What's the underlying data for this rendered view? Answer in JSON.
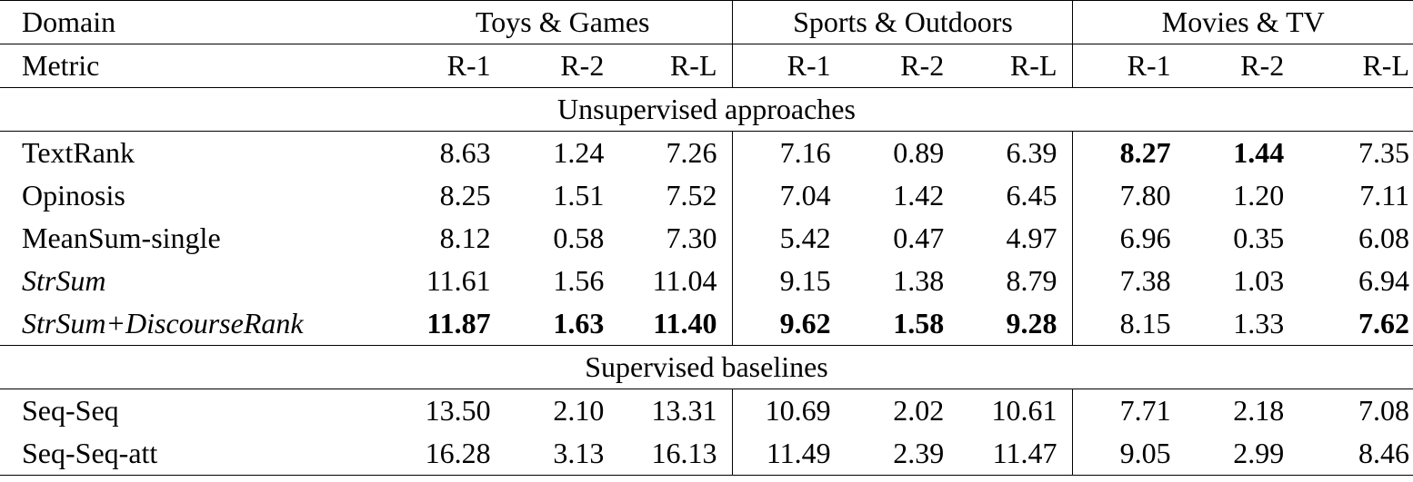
{
  "header": {
    "domain_label": "Domain",
    "metric_label": "Metric",
    "groups": [
      "Toys & Games",
      "Sports & Outdoors",
      "Movies & TV"
    ],
    "metrics": [
      "R-1",
      "R-2",
      "R-L",
      "R-1",
      "R-2",
      "R-L",
      "R-1",
      "R-2",
      "R-L"
    ]
  },
  "sections": [
    {
      "title": "Unsupervised approaches",
      "rows": [
        {
          "name": "TextRank",
          "values": [
            "8.63",
            "1.24",
            "7.26",
            "7.16",
            "0.89",
            "6.39",
            "8.27",
            "1.44",
            "7.35"
          ]
        },
        {
          "name": "Opinosis",
          "values": [
            "8.25",
            "1.51",
            "7.52",
            "7.04",
            "1.42",
            "6.45",
            "7.80",
            "1.20",
            "7.11"
          ]
        },
        {
          "name": "MeanSum-single",
          "values": [
            "8.12",
            "0.58",
            "7.30",
            "5.42",
            "0.47",
            "4.97",
            "6.96",
            "0.35",
            "6.08"
          ]
        },
        {
          "name": "StrSum",
          "values": [
            "11.61",
            "1.56",
            "11.04",
            "9.15",
            "1.38",
            "8.79",
            "7.38",
            "1.03",
            "6.94"
          ]
        },
        {
          "name": "StrSum+DiscourseRank",
          "values": [
            "11.87",
            "1.63",
            "11.40",
            "9.62",
            "1.58",
            "9.28",
            "8.15",
            "1.33",
            "7.62"
          ]
        }
      ]
    },
    {
      "title": "Supervised baselines",
      "rows": [
        {
          "name": "Seq-Seq",
          "values": [
            "13.50",
            "2.10",
            "13.31",
            "10.69",
            "2.02",
            "10.61",
            "7.71",
            "2.18",
            "7.08"
          ]
        },
        {
          "name": "Seq-Seq-att",
          "values": [
            "16.28",
            "3.13",
            "16.13",
            "11.49",
            "2.39",
            "11.47",
            "9.05",
            "2.99",
            "8.46"
          ]
        }
      ]
    }
  ]
}
